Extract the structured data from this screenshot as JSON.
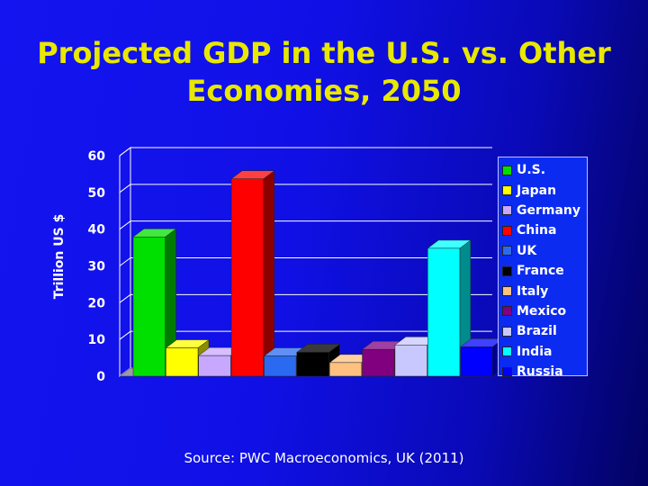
{
  "title": "Projected GDP in the U.S. vs. Other Economies, 2050",
  "source": "Source: PWC Macroeconomics, UK (2011)",
  "colors": {
    "background": "#1414f0",
    "title": "#e8e800",
    "text": "#ffffff"
  },
  "chart_data": {
    "type": "bar",
    "ylabel": "Trillion US $",
    "xlabel": "",
    "ylim": [
      0,
      60
    ],
    "yticks": [
      "0",
      "10",
      "20",
      "30",
      "40",
      "50",
      "60"
    ],
    "grid": true,
    "legend_position": "right",
    "categories": [
      "U.S.",
      "Japan",
      "Germany",
      "China",
      "UK",
      "France",
      "Italy",
      "Mexico",
      "Brazil",
      "India",
      "Russia"
    ],
    "values": [
      37.9,
      7.7,
      5.6,
      53.7,
      5.5,
      6.5,
      3.7,
      7.3,
      8.5,
      34.8,
      8.0
    ],
    "colors": [
      "#00e000",
      "#ffff00",
      "#c8a8ff",
      "#ff0000",
      "#2a6af0",
      "#000000",
      "#ffc080",
      "#800080",
      "#c8c8ff",
      "#00ffff",
      "#0000ff"
    ]
  }
}
